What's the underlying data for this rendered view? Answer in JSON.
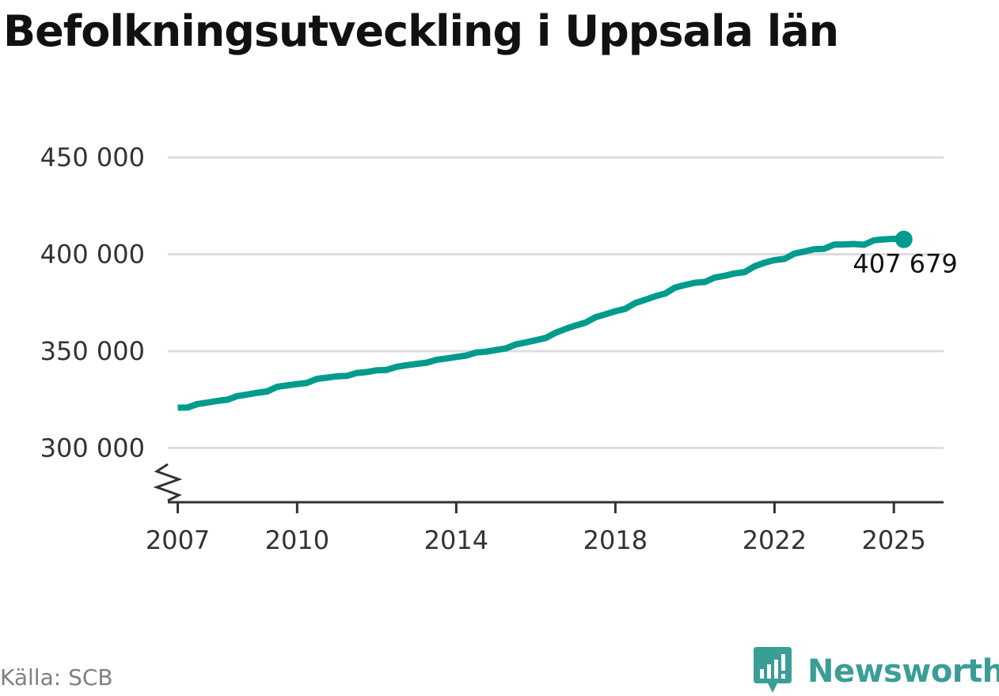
{
  "title": "Befolkningsutveckling i Uppsala län",
  "source": "Källa: SCB",
  "brand": {
    "name": "Newsworthy",
    "icon": "newsworthy-logo-icon",
    "color": "#3a9e96"
  },
  "colors": {
    "line": "#009b8d",
    "grid": "#dddddd",
    "axis": "#333333",
    "text": "#333333"
  },
  "chart_data": {
    "type": "line",
    "title": "Befolkningsutveckling i Uppsala län",
    "xlabel": "",
    "ylabel": "",
    "x_ticks": [
      "2007",
      "2010",
      "2014",
      "2018",
      "2022",
      "2025"
    ],
    "y_ticks": [
      "300 000",
      "350 000",
      "400 000",
      "450 000"
    ],
    "y_tick_values": [
      300000,
      350000,
      400000,
      450000
    ],
    "ylim": [
      272000,
      450000
    ],
    "xlim": [
      2006.75,
      2026.25
    ],
    "y_axis_break": true,
    "grid": "horizontal",
    "end_label": "407 679",
    "series": [
      {
        "x": [
          2007.0,
          2007.25,
          2007.5,
          2007.75,
          2008.0,
          2008.25,
          2008.5,
          2008.75,
          2009.0,
          2009.25,
          2009.5,
          2009.75,
          2010.0,
          2010.25,
          2010.5,
          2010.75,
          2011.0,
          2011.25,
          2011.5,
          2011.75,
          2012.0,
          2012.25,
          2012.5,
          2012.75,
          2013.0,
          2013.25,
          2013.5,
          2013.75,
          2014.0,
          2014.25,
          2014.5,
          2014.75,
          2015.0,
          2015.25,
          2015.5,
          2015.75,
          2016.0,
          2016.25,
          2016.5,
          2016.75,
          2017.0,
          2017.25,
          2017.5,
          2017.75,
          2018.0,
          2018.25,
          2018.5,
          2018.75,
          2019.0,
          2019.25,
          2019.5,
          2019.75,
          2020.0,
          2020.25,
          2020.5,
          2020.75,
          2021.0,
          2021.25,
          2021.5,
          2021.75,
          2022.0,
          2022.25,
          2022.5,
          2022.75,
          2023.0,
          2023.25,
          2023.5,
          2023.75,
          2024.0,
          2024.25,
          2024.5,
          2024.75,
          2025.0,
          2025.25
        ],
        "values": [
          320800,
          320900,
          322700,
          323500,
          324300,
          324900,
          326800,
          327600,
          328500,
          329200,
          331600,
          332300,
          333000,
          333600,
          335700,
          336300,
          337000,
          337200,
          338700,
          339200,
          340100,
          340300,
          341900,
          342700,
          343400,
          344000,
          345500,
          346200,
          347000,
          347700,
          349300,
          349700,
          350600,
          351400,
          353500,
          354500,
          355600,
          356800,
          359500,
          361500,
          363200,
          364700,
          367500,
          369000,
          370600,
          371800,
          374800,
          376500,
          378300,
          379700,
          382800,
          384100,
          385300,
          385700,
          388000,
          388900,
          390100,
          390800,
          393800,
          395600,
          397000,
          397600,
          400300,
          401400,
          402600,
          402800,
          405000,
          405100,
          405300,
          404900,
          407200,
          407700,
          408000,
          407679
        ]
      }
    ]
  }
}
